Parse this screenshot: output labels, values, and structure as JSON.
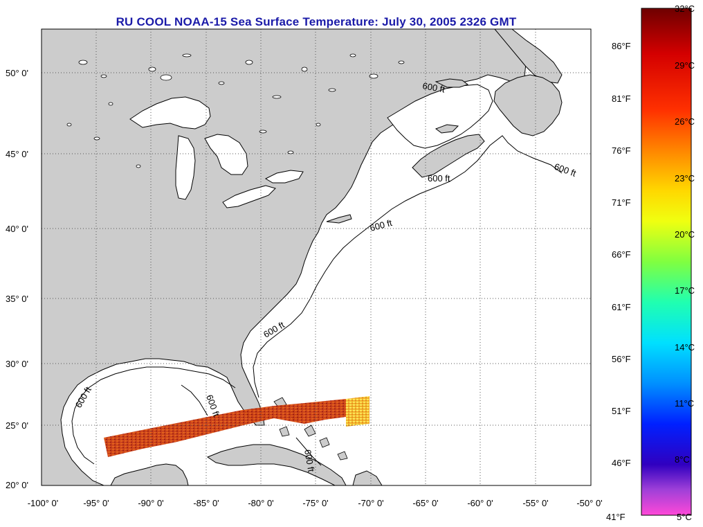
{
  "title": "RU COOL  NOAA-15  Sea Surface Temperature:  July 30, 2005 2326 GMT",
  "map": {
    "lon_range": [
      -100,
      -50
    ],
    "lat_range": [
      20,
      52.5
    ],
    "lat_labels": [
      "20° 0'",
      "25° 0'",
      "30° 0'",
      "35° 0'",
      "40° 0'",
      "45° 0'",
      "50° 0'"
    ],
    "lon_labels": [
      "-100° 0'",
      "-95° 0'",
      "-90° 0'",
      "-85° 0'",
      "-80° 0'",
      "-75° 0'",
      "-70° 0'",
      "-65° 0'",
      "-60° 0'",
      "-55° 0'",
      "-50° 0'"
    ],
    "grid": "dotted",
    "land_color": "#cccccc",
    "ocean_color": "#ffffff",
    "isobath_label": "600 ft"
  },
  "colorbar": {
    "celsius_labels": [
      "32°C",
      "29°C",
      "26°C",
      "23°C",
      "20°C",
      "17°C",
      "14°C",
      "11°C",
      "8°C",
      "5°C"
    ],
    "fahrenheit_labels": [
      "86°F",
      "81°F",
      "76°F",
      "71°F",
      "66°F",
      "61°F",
      "56°F",
      "51°F",
      "46°F",
      "41°F"
    ],
    "stops": [
      "#7a0000",
      "#cc0000",
      "#ff2200",
      "#ff7a00",
      "#ffc000",
      "#ffff00",
      "#a0ff30",
      "#30ff80",
      "#00ffd0",
      "#00d8ff",
      "#0088ff",
      "#0022ff",
      "#0000c8",
      "#8040d0",
      "#d050e0",
      "#ff50d0"
    ]
  }
}
